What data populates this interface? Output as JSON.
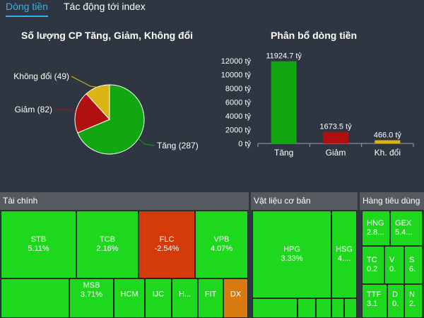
{
  "tabs": [
    {
      "label": "Dòng tiền",
      "active": true
    },
    {
      "label": "Tác động tới index",
      "active": false
    }
  ],
  "pie_chart": {
    "title": "Số lượng CP Tăng, Giảm, Không đổi",
    "slices": [
      {
        "label": "Tăng (287)",
        "value": 287,
        "color": "#12a612"
      },
      {
        "label": "Giảm (82)",
        "value": 82,
        "color": "#b01010"
      },
      {
        "label": "Không đổi (49)",
        "value": 49,
        "color": "#d9b516"
      }
    ]
  },
  "chart_data": {
    "type": "bar",
    "title": "Phân bổ dòng tiền",
    "categories": [
      "Tăng",
      "Giảm",
      "Kh. đổi"
    ],
    "values": [
      11924.7,
      1673.5,
      466.0
    ],
    "data_labels": [
      "11924.7 tỷ",
      "1673.5 tỷ",
      "466.0 tỷ"
    ],
    "colors": [
      "#12a612",
      "#b01010",
      "#d9b516"
    ],
    "yticks": [
      "0 tỷ",
      "2000 tỷ",
      "4000 tỷ",
      "6000 tỷ",
      "8000 tỷ",
      "10000 tỷ",
      "12000 tỷ"
    ],
    "ylim": [
      0,
      12000
    ]
  },
  "heatmap": {
    "sectors": [
      {
        "name": "Tài chính"
      },
      {
        "name": "Vật liệu cơ bản"
      },
      {
        "name": "Hàng tiêu dùng"
      }
    ],
    "cells": [
      {
        "ticker": "STB",
        "change": "5.11%",
        "color": "#1ed81e"
      },
      {
        "ticker": "TCB",
        "change": "2.16%",
        "color": "#1ed81e"
      },
      {
        "ticker": "FLC",
        "change": "-2.54%",
        "color": "#d43a0a"
      },
      {
        "ticker": "VPB",
        "change": "4.07%",
        "color": "#1ed81e"
      },
      {
        "ticker": "MSB",
        "change": "3.71%",
        "color": "#1ed81e"
      },
      {
        "ticker": "HCM",
        "change": "",
        "color": "#1ed81e"
      },
      {
        "ticker": "IJC",
        "change": "",
        "color": "#1ed81e"
      },
      {
        "ticker": "H...",
        "change": "",
        "color": "#1ed81e"
      },
      {
        "ticker": "FIT",
        "change": "",
        "color": "#1ed81e"
      },
      {
        "ticker": "DX",
        "change": "",
        "color": "#d97a10"
      },
      {
        "ticker": "HPG",
        "change": "3.33%",
        "color": "#1ed81e"
      },
      {
        "ticker": "HSG",
        "change": "4....",
        "color": "#1ed81e"
      },
      {
        "ticker": "HNG",
        "change": "2.8...",
        "color": "#1ed81e"
      },
      {
        "ticker": "GEX",
        "change": "5.4...",
        "color": "#1ed81e"
      },
      {
        "ticker": "TC",
        "change": "0.2",
        "color": "#1ed81e"
      },
      {
        "ticker": "V",
        "change": "0.",
        "color": "#1ed81e"
      },
      {
        "ticker": "S",
        "change": "6.",
        "color": "#1ed81e"
      },
      {
        "ticker": "TTF",
        "change": "3.1",
        "color": "#1ed81e"
      },
      {
        "ticker": "D",
        "change": "0.",
        "color": "#1ed81e"
      },
      {
        "ticker": "N",
        "change": "2.",
        "color": "#1ed81e"
      }
    ],
    "filler_color": "#1ed81e"
  }
}
